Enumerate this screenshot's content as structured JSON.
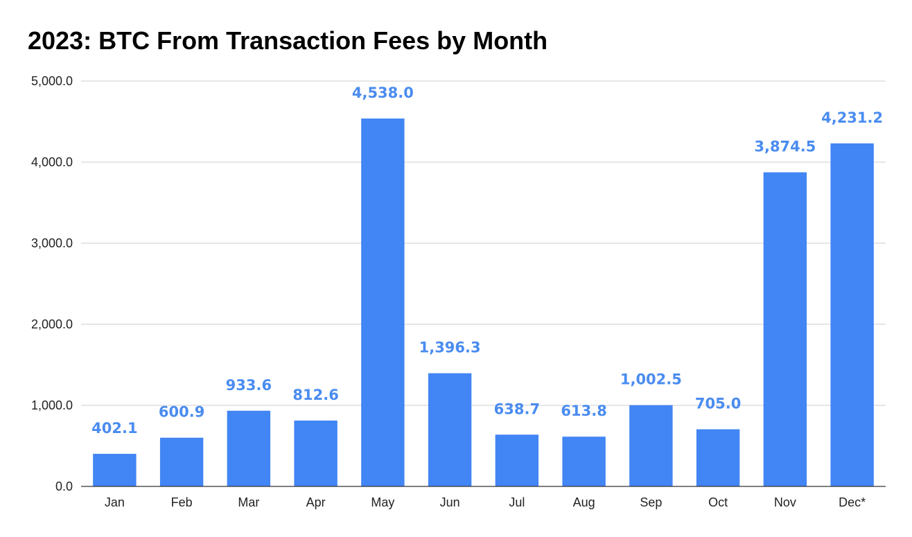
{
  "chart_data": {
    "type": "bar",
    "title": "2023: BTC From Transaction Fees by Month",
    "categories": [
      "Jan",
      "Feb",
      "Mar",
      "Apr",
      "May",
      "Jun",
      "Jul",
      "Aug",
      "Sep",
      "Oct",
      "Nov",
      "Dec*"
    ],
    "values": [
      402.1,
      600.9,
      933.6,
      812.6,
      4538.0,
      1396.3,
      638.7,
      613.8,
      1002.5,
      705.0,
      3874.5,
      4231.2
    ],
    "data_labels": [
      "402.1",
      "600.9",
      "933.6",
      "812.6",
      "4,538.0",
      "1,396.3",
      "638.7",
      "613.8",
      "1,002.5",
      "705.0",
      "3,874.5",
      "4,231.2"
    ],
    "y_ticks": [
      0,
      1000,
      2000,
      3000,
      4000,
      5000
    ],
    "y_tick_labels": [
      "0.0",
      "1,000.0",
      "2,000.0",
      "3,000.0",
      "4,000.0",
      "5,000.0"
    ],
    "ylim": [
      0,
      5000
    ],
    "xlabel": "",
    "ylabel": "",
    "grid": true,
    "legend": "none",
    "colors": {
      "bar": "#4285f4",
      "data_label": "#4a8cf0",
      "grid": "#cccccc",
      "axis": "#333333"
    }
  }
}
